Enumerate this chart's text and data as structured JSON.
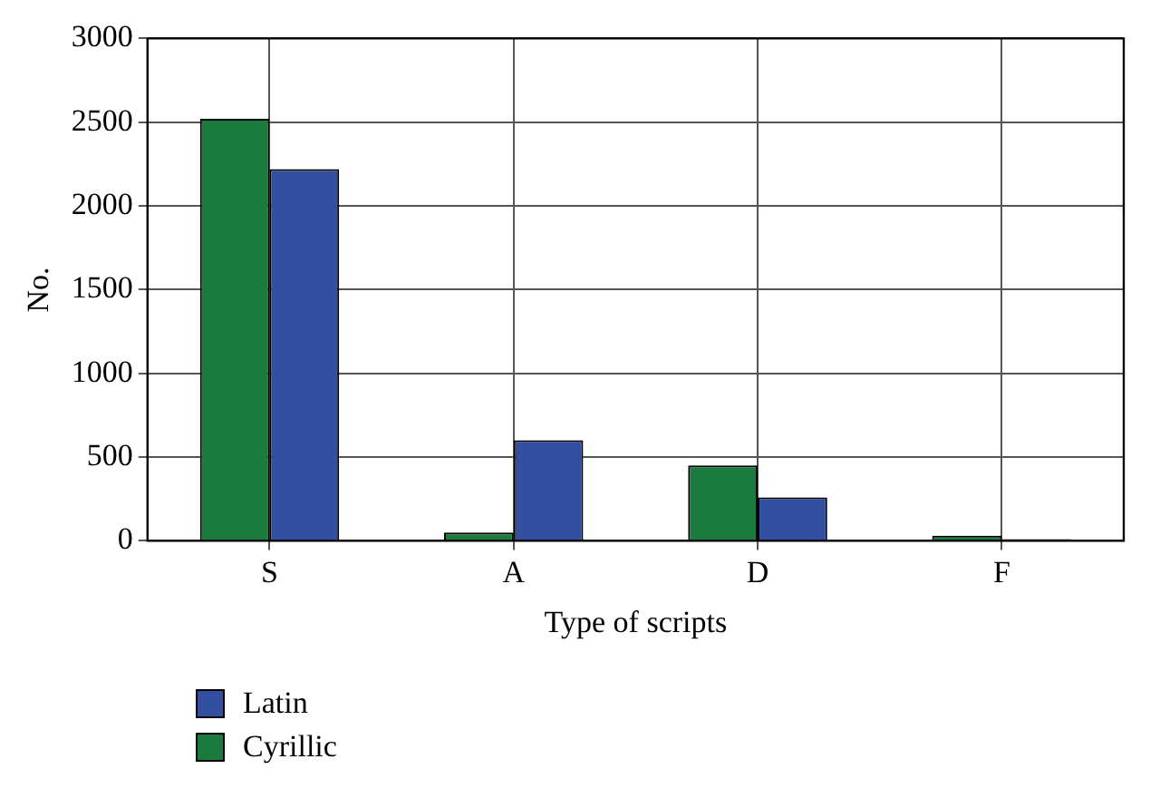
{
  "chart_data": {
    "type": "bar",
    "xlabel": "Type of scripts",
    "ylabel": "No.",
    "categories": [
      "S",
      "A",
      "D",
      "F"
    ],
    "series": [
      {
        "name": "Cyrillic",
        "color": "#1b7a3e",
        "values": [
          2520,
          50,
          450,
          30
        ]
      },
      {
        "name": "Latin",
        "color": "#3350a0",
        "values": [
          2220,
          600,
          260,
          10
        ]
      }
    ],
    "ylim": [
      0,
      3000
    ],
    "yticks": [
      0,
      500,
      1000,
      1500,
      2000,
      2500,
      3000
    ],
    "grid": true,
    "legend": "bottom left"
  }
}
